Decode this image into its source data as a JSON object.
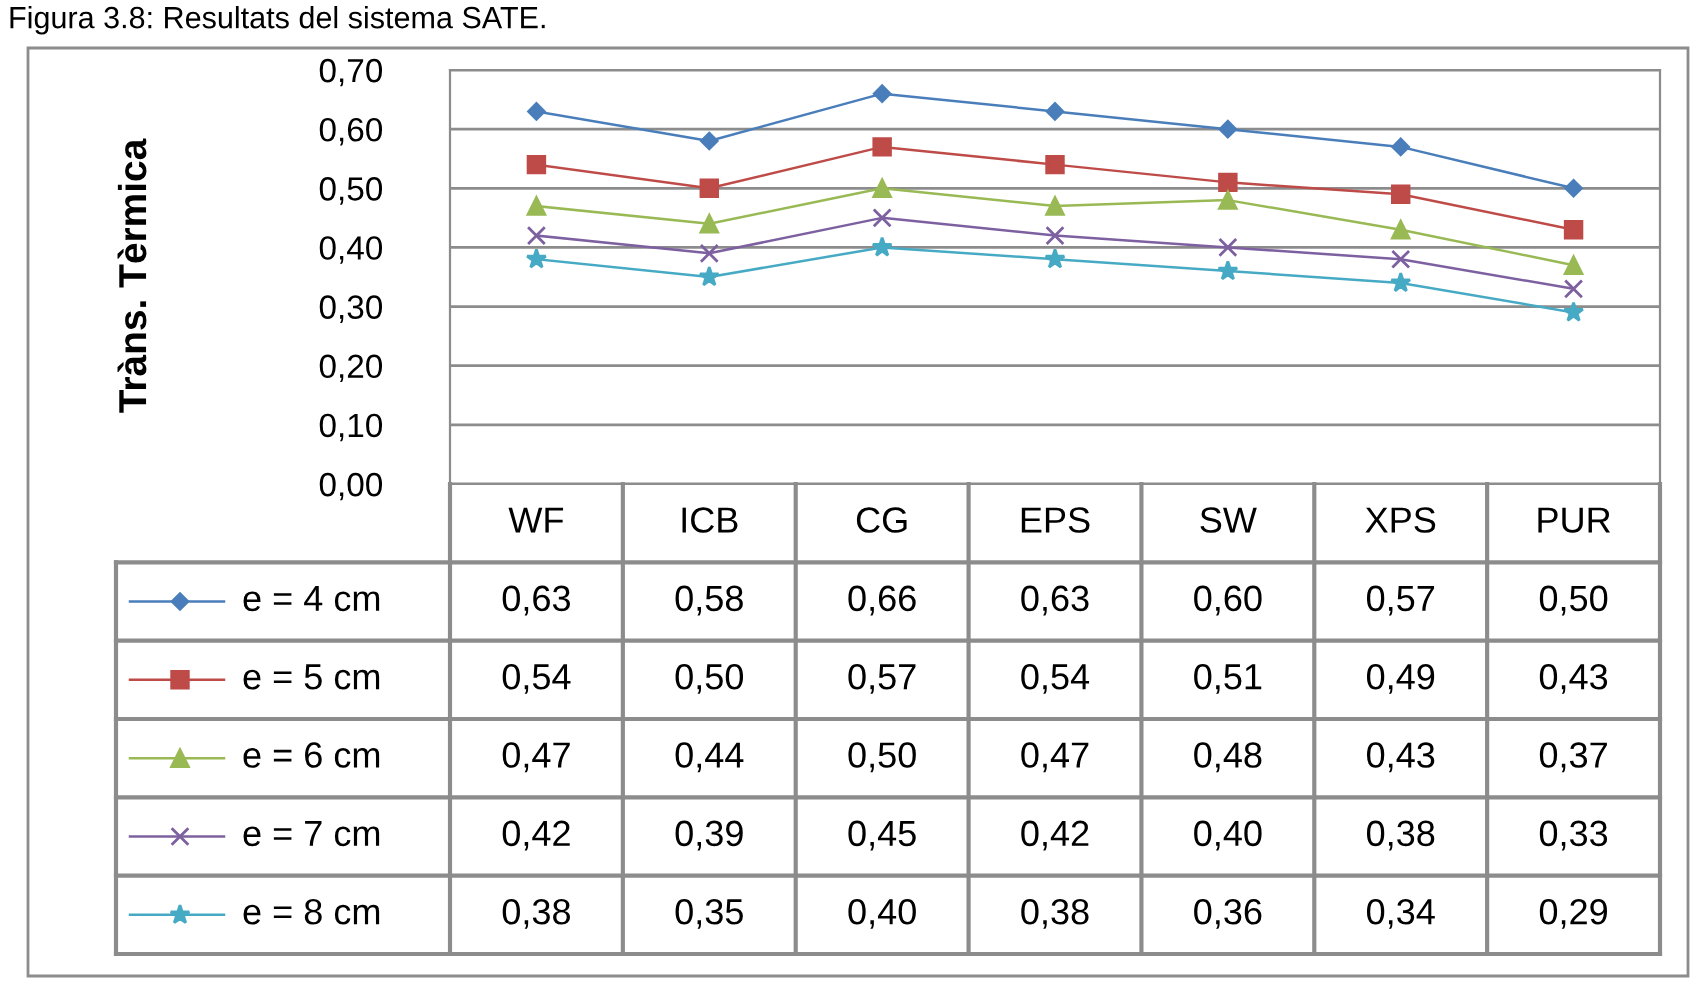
{
  "chart_data": {
    "type": "line",
    "title": "Figura 3.8: Resultats del sistema SATE.",
    "ylabel": "Tràns. Tèrmica",
    "categories": [
      "WF",
      "ICB",
      "CG",
      "EPS",
      "SW",
      "XPS",
      "PUR"
    ],
    "series": [
      {
        "name": "e = 4 cm",
        "color": "#4a7ebb",
        "marker": "diamond",
        "values": [
          0.63,
          0.58,
          0.66,
          0.63,
          0.6,
          0.57,
          0.5
        ],
        "value_labels": [
          "0,63",
          "0,58",
          "0,66",
          "0,63",
          "0,60",
          "0,57",
          "0,50"
        ]
      },
      {
        "name": "e = 5 cm",
        "color": "#be4b48",
        "marker": "square",
        "values": [
          0.54,
          0.5,
          0.57,
          0.54,
          0.51,
          0.49,
          0.43
        ],
        "value_labels": [
          "0,54",
          "0,50",
          "0,57",
          "0,54",
          "0,51",
          "0,49",
          "0,43"
        ]
      },
      {
        "name": "e = 6 cm",
        "color": "#98b954",
        "marker": "triangle",
        "values": [
          0.47,
          0.44,
          0.5,
          0.47,
          0.48,
          0.43,
          0.37
        ],
        "value_labels": [
          "0,47",
          "0,44",
          "0,50",
          "0,47",
          "0,48",
          "0,43",
          "0,37"
        ]
      },
      {
        "name": "e = 7 cm",
        "color": "#7d60a0",
        "marker": "cross",
        "values": [
          0.42,
          0.39,
          0.45,
          0.42,
          0.4,
          0.38,
          0.33
        ],
        "value_labels": [
          "0,42",
          "0,39",
          "0,45",
          "0,42",
          "0,40",
          "0,38",
          "0,33"
        ]
      },
      {
        "name": "e = 8 cm",
        "color": "#46aac5",
        "marker": "star",
        "values": [
          0.38,
          0.35,
          0.4,
          0.38,
          0.36,
          0.34,
          0.29
        ],
        "value_labels": [
          "0,38",
          "0,35",
          "0,40",
          "0,38",
          "0,36",
          "0,34",
          "0,29"
        ]
      }
    ],
    "ylim": [
      0,
      0.7
    ],
    "yticks": [
      {
        "value": 0,
        "label": "0,00"
      },
      {
        "value": 0.1,
        "label": "0,10"
      },
      {
        "value": 0.2,
        "label": "0,20"
      },
      {
        "value": 0.3,
        "label": "0,30"
      },
      {
        "value": 0.4,
        "label": "0,40"
      },
      {
        "value": 0.5,
        "label": "0,50"
      },
      {
        "value": 0.6,
        "label": "0,60"
      },
      {
        "value": 0.7,
        "label": "0,70"
      }
    ],
    "grid": "y",
    "legend": "bottom"
  }
}
